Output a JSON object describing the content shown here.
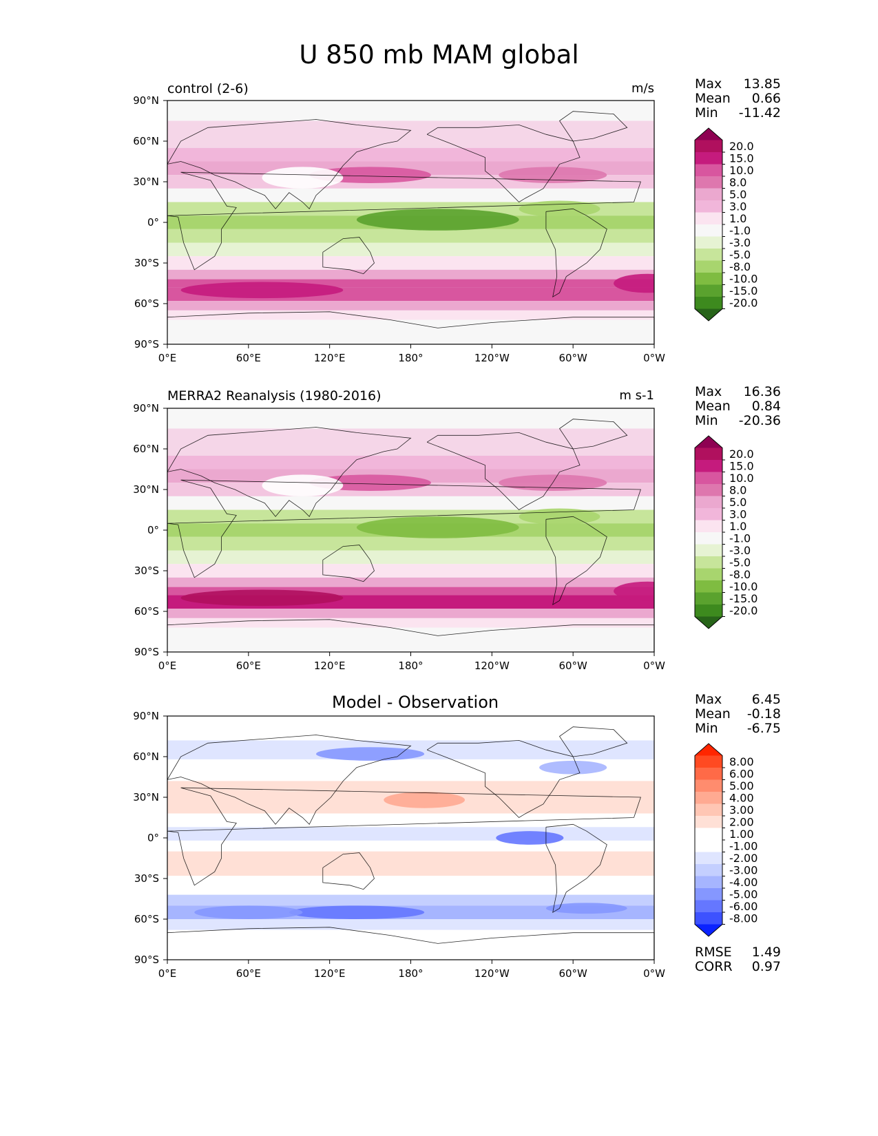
{
  "title": "U 850 mb MAM global",
  "chart_data": [
    {
      "type": "heatmap",
      "title": "control (2-6)",
      "units": "m/s",
      "stats": [
        {
          "label": "Max",
          "value": "13.85"
        },
        {
          "label": "Mean",
          "value": "0.66"
        },
        {
          "label": "Min",
          "value": "-11.42"
        }
      ],
      "x_ticks": [
        "0°E",
        "60°E",
        "120°E",
        "180°",
        "120°W",
        "60°W",
        "0°W"
      ],
      "y_ticks": [
        "90°N",
        "60°N",
        "30°N",
        "0°",
        "30°S",
        "60°S",
        "90°S"
      ],
      "xlim": [
        0,
        360
      ],
      "ylim": [
        -90,
        90
      ],
      "colorbar_levels": [
        "20.0",
        "15.0",
        "10.0",
        "8.0",
        "5.0",
        "3.0",
        "1.0",
        "-1.0",
        "-3.0",
        "-5.0",
        "-8.0",
        "-10.0",
        "-15.0",
        "-20.0"
      ],
      "colorbar_colors": [
        "#8e0152",
        "#b0105e",
        "#c51b7d",
        "#d8569f",
        "#de77ae",
        "#eba8cf",
        "#f1b6da",
        "#fbe4f0",
        "#f7f7f7",
        "#e6f3d3",
        "#c7e59b",
        "#a8d56e",
        "#7fbc41",
        "#5aa22e",
        "#3d8a1e",
        "#276419"
      ],
      "colorbar_extend": "both"
    },
    {
      "type": "heatmap",
      "title": "MERRA2 Reanalysis (1980-2016)",
      "units": "m s-1",
      "stats": [
        {
          "label": "Max",
          "value": "16.36"
        },
        {
          "label": "Mean",
          "value": "0.84"
        },
        {
          "label": "Min",
          "value": "-20.36"
        }
      ],
      "x_ticks": [
        "0°E",
        "60°E",
        "120°E",
        "180°",
        "120°W",
        "60°W",
        "0°W"
      ],
      "y_ticks": [
        "90°N",
        "60°N",
        "30°N",
        "0°",
        "30°S",
        "60°S",
        "90°S"
      ],
      "xlim": [
        0,
        360
      ],
      "ylim": [
        -90,
        90
      ],
      "colorbar_levels": [
        "20.0",
        "15.0",
        "10.0",
        "8.0",
        "5.0",
        "3.0",
        "1.0",
        "-1.0",
        "-3.0",
        "-5.0",
        "-8.0",
        "-10.0",
        "-15.0",
        "-20.0"
      ],
      "colorbar_colors": [
        "#8e0152",
        "#b0105e",
        "#c51b7d",
        "#d8569f",
        "#de77ae",
        "#eba8cf",
        "#f1b6da",
        "#fbe4f0",
        "#f7f7f7",
        "#e6f3d3",
        "#c7e59b",
        "#a8d56e",
        "#7fbc41",
        "#5aa22e",
        "#3d8a1e",
        "#276419"
      ],
      "colorbar_extend": "both"
    },
    {
      "type": "heatmap",
      "title": "Model - Observation",
      "units": "",
      "stats": [
        {
          "label": "Max",
          "value": "6.45"
        },
        {
          "label": "Mean",
          "value": "-0.18"
        },
        {
          "label": "Min",
          "value": "-6.75"
        }
      ],
      "metrics": [
        {
          "label": "RMSE",
          "value": "1.49"
        },
        {
          "label": "CORR",
          "value": "0.97"
        }
      ],
      "x_ticks": [
        "0°E",
        "60°E",
        "120°E",
        "180°",
        "120°W",
        "60°W",
        "0°W"
      ],
      "y_ticks": [
        "90°N",
        "60°N",
        "30°N",
        "0°",
        "30°S",
        "60°S",
        "90°S"
      ],
      "xlim": [
        0,
        360
      ],
      "ylim": [
        -90,
        90
      ],
      "colorbar_levels": [
        "8.00",
        "6.00",
        "5.00",
        "4.00",
        "3.00",
        "2.00",
        "1.00",
        "-1.00",
        "-2.00",
        "-3.00",
        "-4.00",
        "-5.00",
        "-6.00",
        "-8.00"
      ],
      "colorbar_colors": [
        "#ff2600",
        "#ff4a22",
        "#ff6a47",
        "#ff8c6e",
        "#ffaa92",
        "#ffc6b4",
        "#ffe0d6",
        "#ffffff",
        "#ffffff",
        "#dfe5ff",
        "#c4cfff",
        "#a6b5ff",
        "#8597ff",
        "#6577ff",
        "#3d52ff",
        "#0a22ff"
      ],
      "colorbar_extend": "both"
    }
  ]
}
